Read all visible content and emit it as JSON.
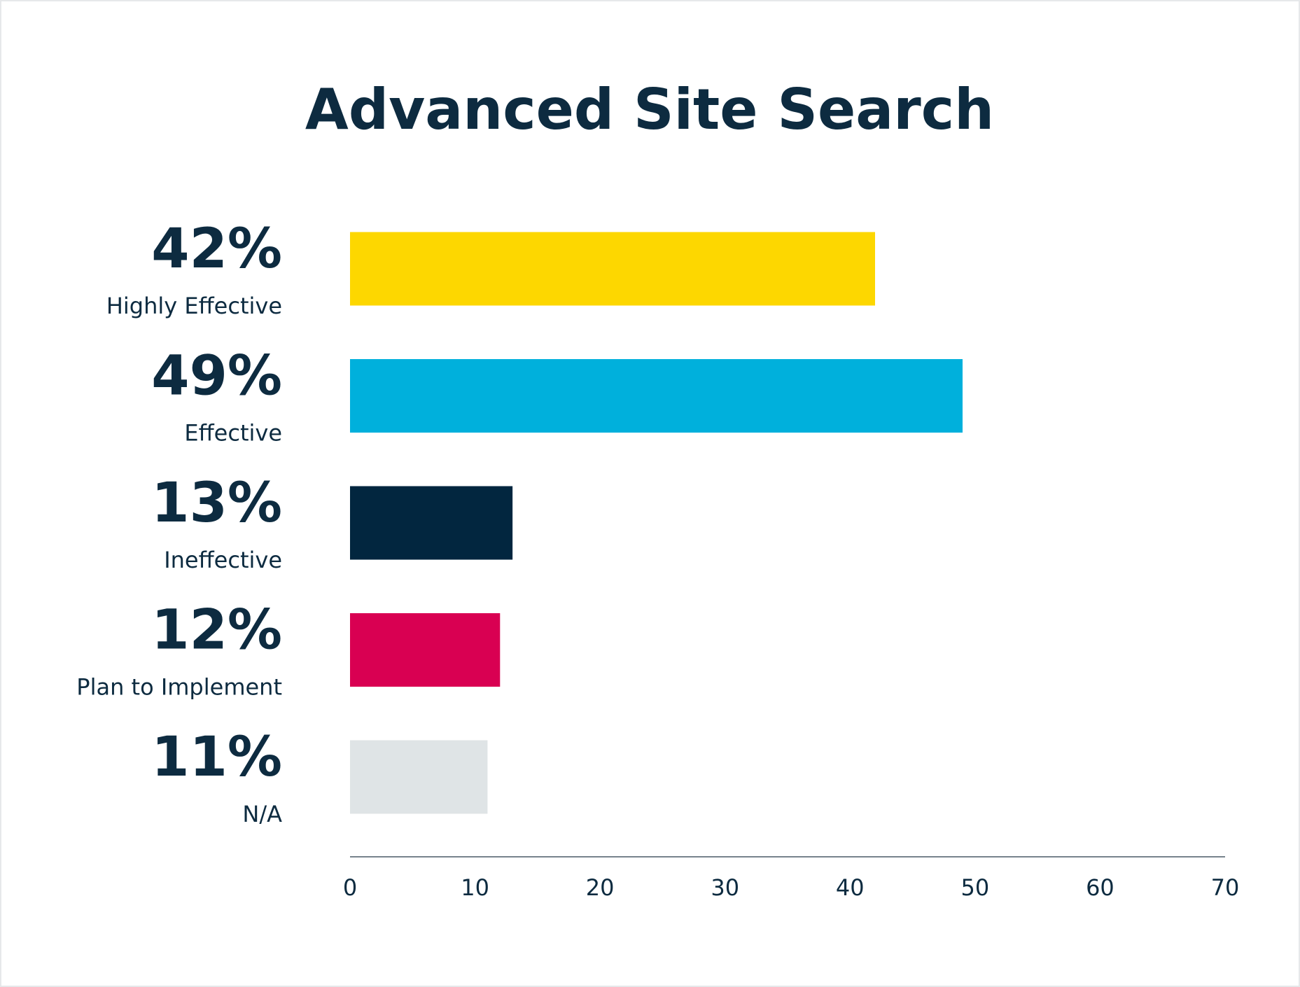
{
  "chart_data": {
    "type": "bar",
    "orientation": "horizontal",
    "title": "Advanced Site Search",
    "categories": [
      "Highly Effective",
      "Effective",
      "Ineffective",
      "Plan to Implement",
      "N/A"
    ],
    "values": [
      42,
      49,
      13,
      12,
      11
    ],
    "value_labels": [
      "42%",
      "49%",
      "13%",
      "12%",
      "11%"
    ],
    "colors": [
      "#fdd700",
      "#00b0dc",
      "#02263f",
      "#d90052",
      "#dfe4e6"
    ],
    "xlim": [
      0,
      70
    ],
    "xticks": [
      0,
      10,
      20,
      30,
      40,
      50,
      60,
      70
    ]
  }
}
